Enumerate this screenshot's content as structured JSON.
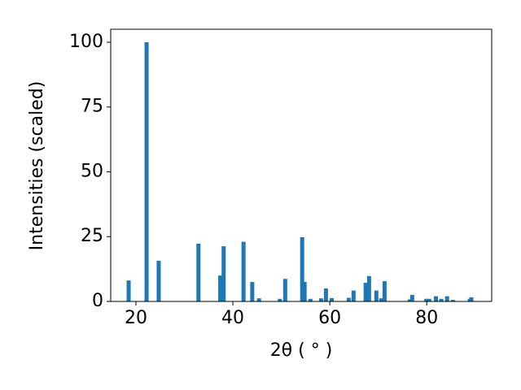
{
  "chart_data": {
    "type": "bar",
    "xlabel": "2θ ( ° )",
    "ylabel": "Intensities (scaled)",
    "x": [
      18.5,
      22.2,
      24.7,
      32.9,
      37.4,
      38.1,
      42.2,
      44.0,
      45.4,
      49.7,
      50.8,
      54.3,
      54.8,
      56.0,
      58.2,
      59.2,
      60.4,
      63.9,
      64.9,
      67.4,
      68.1,
      69.6,
      70.6,
      71.3,
      76.5,
      77.0,
      79.9,
      80.5,
      81.9,
      83.0,
      84.2,
      85.4,
      88.9,
      89.2
    ],
    "values": [
      8.1,
      100,
      15.7,
      22.3,
      10,
      21.3,
      23,
      7.5,
      1.2,
      1,
      8.7,
      24.8,
      7.5,
      1,
      1.2,
      5,
      1.3,
      1.4,
      4.2,
      7.2,
      9.8,
      4.2,
      1.2,
      7.8,
      0.8,
      2.5,
      1,
      1,
      2,
      1,
      2,
      0.6,
      1,
      1.6
    ],
    "color": "#1f77b4",
    "xlim": [
      14.8,
      93.4
    ],
    "ylim": [
      0,
      105
    ],
    "xticks": [
      20,
      40,
      60,
      80
    ],
    "yticks": [
      0,
      25,
      50,
      75,
      100
    ],
    "grid": false
  }
}
